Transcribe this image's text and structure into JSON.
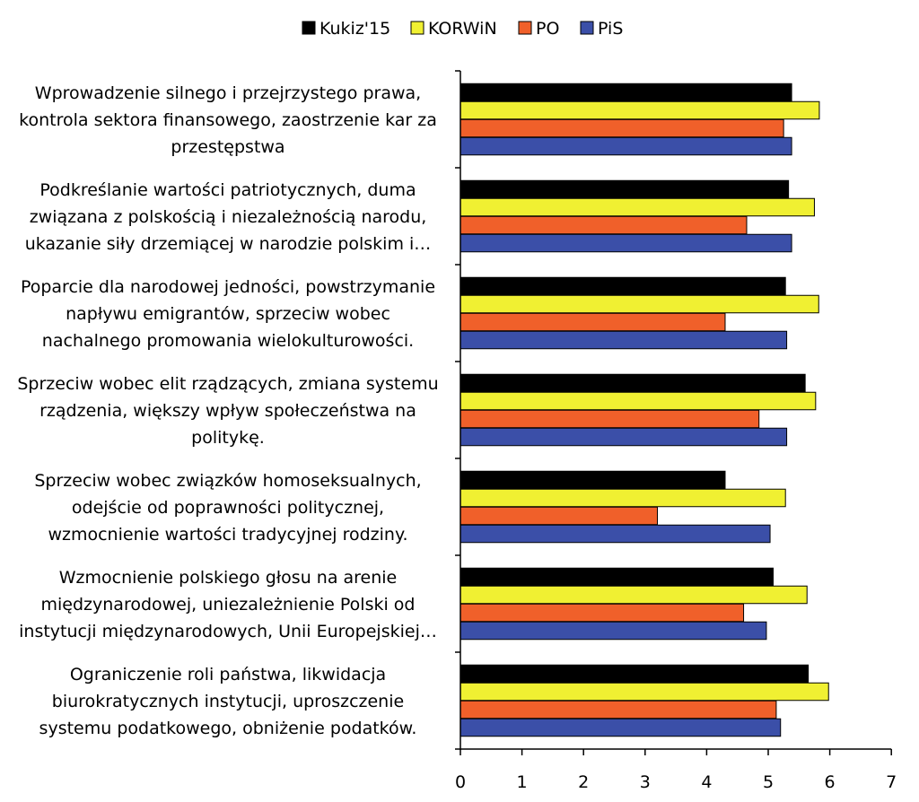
{
  "chart_data": {
    "type": "bar",
    "orientation": "horizontal",
    "legend_position": "top",
    "grid": false,
    "xlim": [
      0,
      7
    ],
    "x_ticks": [
      0,
      1,
      2,
      3,
      4,
      5,
      6,
      7
    ],
    "categories": [
      [
        "Wprowadzenie silnego i przejrzystego prawa,",
        "kontrola sektora finansowego,  zaostrzenie kar za",
        "przestępstwa"
      ],
      [
        "Podkreślanie wartości patriotycznych, duma",
        "związana z polskością i niezależnością narodu,",
        "ukazanie siły drzemiącej w narodzie polskim i…"
      ],
      [
        "Poparcie dla narodowej jedności, powstrzymanie",
        "napływu emigrantów, sprzeciw wobec",
        "nachalnego promowania wielokulturowości."
      ],
      [
        "Sprzeciw wobec elit rządzących, zmiana systemu",
        "rządzenia, większy wpływ społeczeństwa na",
        "politykę."
      ],
      [
        "Sprzeciw wobec związków homoseksualnych,",
        "odejście od poprawności politycznej,",
        "wzmocnienie wartości tradycyjnej rodziny."
      ],
      [
        "Wzmocnienie polskiego głosu na arenie",
        "międzynarodowej, uniezależnienie Polski od",
        "instytucji międzynarodowych, Unii Europejskiej…"
      ],
      [
        "Ograniczenie roli państwa, likwidacja",
        "biurokratycznych instytucji, uproszczenie",
        "systemu podatkowego, obniżenie podatków."
      ]
    ],
    "series": [
      {
        "name": "Kukiz'15",
        "color": "#000000",
        "values": [
          5.38,
          5.33,
          5.28,
          5.6,
          4.3,
          5.08,
          5.65
        ]
      },
      {
        "name": "KORWiN",
        "color": "#f0f032",
        "values": [
          5.83,
          5.75,
          5.82,
          5.77,
          5.28,
          5.63,
          5.98
        ]
      },
      {
        "name": "PO",
        "color": "#f0602a",
        "values": [
          5.25,
          4.65,
          4.3,
          4.85,
          3.2,
          4.6,
          5.13
        ]
      },
      {
        "name": "PiS",
        "color": "#3b4fa8",
        "values": [
          5.38,
          5.38,
          5.3,
          5.3,
          5.03,
          4.97,
          5.2
        ]
      }
    ]
  }
}
